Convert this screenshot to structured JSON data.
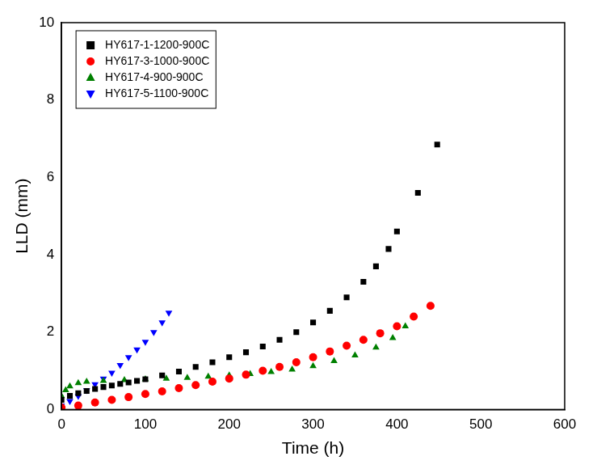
{
  "chart_data": {
    "type": "scatter",
    "x_label": "Time (h)",
    "y_label": "LLD (mm)",
    "xlim": [
      0,
      600
    ],
    "xticks": [
      0,
      100,
      200,
      300,
      400,
      500,
      600
    ],
    "ylim": [
      0,
      10
    ],
    "yticks": [
      0,
      2,
      4,
      6,
      8,
      10
    ],
    "grid": false,
    "legend": "upper left",
    "series": [
      {
        "name": "HY617-1-1200-900C",
        "color": "#000000",
        "marker": "square",
        "x": [
          0,
          10,
          20,
          30,
          40,
          50,
          60,
          70,
          80,
          90,
          100,
          120,
          140,
          160,
          180,
          200,
          220,
          240,
          260,
          280,
          300,
          320,
          340,
          360,
          375,
          390,
          400,
          425,
          448
        ],
        "values": [
          0.25,
          0.35,
          0.42,
          0.48,
          0.53,
          0.58,
          0.62,
          0.66,
          0.7,
          0.74,
          0.78,
          0.88,
          0.98,
          1.1,
          1.22,
          1.35,
          1.48,
          1.63,
          1.8,
          2.0,
          2.25,
          2.55,
          2.9,
          3.3,
          3.7,
          4.15,
          4.6,
          5.6,
          6.85
        ]
      },
      {
        "name": "HY617-3-1000-900C",
        "color": "#ff0000",
        "marker": "circle",
        "x": [
          0,
          20,
          40,
          60,
          80,
          100,
          120,
          140,
          160,
          180,
          200,
          220,
          240,
          260,
          280,
          300,
          320,
          340,
          360,
          380,
          400,
          420,
          440
        ],
        "values": [
          0.05,
          0.1,
          0.18,
          0.25,
          0.32,
          0.4,
          0.47,
          0.55,
          0.63,
          0.72,
          0.8,
          0.9,
          1.0,
          1.1,
          1.22,
          1.35,
          1.5,
          1.65,
          1.8,
          1.97,
          2.15,
          2.4,
          2.68
        ]
      },
      {
        "name": "HY617-4-900-900C",
        "color": "#008000",
        "marker": "triangle",
        "x": [
          0,
          5,
          10,
          20,
          30,
          50,
          75,
          100,
          125,
          150,
          175,
          200,
          225,
          250,
          275,
          300,
          325,
          350,
          375,
          395,
          410
        ],
        "values": [
          0.35,
          0.5,
          0.6,
          0.68,
          0.72,
          0.74,
          0.76,
          0.78,
          0.8,
          0.82,
          0.85,
          0.88,
          0.92,
          0.97,
          1.03,
          1.12,
          1.25,
          1.4,
          1.6,
          1.85,
          2.15
        ]
      },
      {
        "name": "HY617-5-1100-900C",
        "color": "#0000ff",
        "marker": "triangle_down",
        "x": [
          0,
          10,
          20,
          30,
          40,
          50,
          60,
          70,
          80,
          90,
          100,
          110,
          120,
          128
        ],
        "values": [
          0.1,
          0.22,
          0.35,
          0.5,
          0.65,
          0.8,
          0.95,
          1.15,
          1.35,
          1.55,
          1.75,
          2.0,
          2.25,
          2.5
        ]
      }
    ]
  }
}
